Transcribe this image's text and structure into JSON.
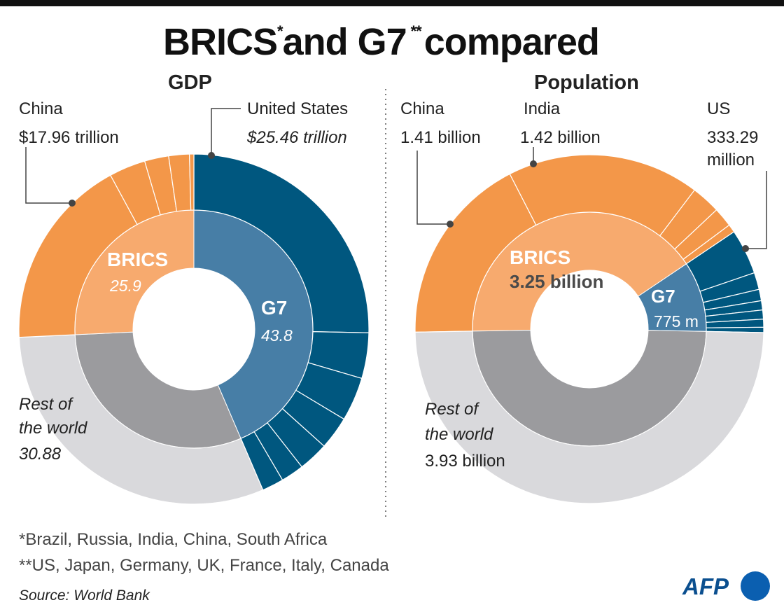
{
  "title": {
    "main_1": "BRICS",
    "sup_1": "*",
    "main_2": "and G7",
    "sup_2": "**",
    "main_3": "compared"
  },
  "colors": {
    "brics_outer": "#f39749",
    "brics_inner": "#f7aa6e",
    "g7_outer": "#00577f",
    "g7_inner": "#477ea6",
    "rest_outer": "#d9d9dc",
    "rest_inner": "#9b9b9e",
    "afp_blue": "#0b5fb0"
  },
  "chart_data": [
    {
      "type": "pie",
      "title": "GDP",
      "inner": [
        {
          "name": "G7",
          "value": 43.8,
          "value_label": "43.8",
          "color": "#477ea6"
        },
        {
          "name": "Rest of the world",
          "value": 30.88,
          "value_label": "30.88",
          "color": "#9b9b9e"
        },
        {
          "name": "BRICS",
          "value": 25.9,
          "value_label": "25.9",
          "color": "#f7aa6e"
        }
      ],
      "outer": [
        {
          "group": "G7",
          "segments": [
            {
              "name": "United States",
              "value": 25.46,
              "value_label": "$25.46 trillion"
            },
            {
              "value": 4.23
            },
            {
              "value": 4.07
            },
            {
              "value": 3.07
            },
            {
              "value": 2.78
            },
            {
              "value": 2.14
            },
            {
              "value": 2.01
            }
          ]
        },
        {
          "group": "Rest of the world",
          "segments": [
            {
              "value": 30.88
            }
          ]
        },
        {
          "group": "BRICS",
          "segments": [
            {
              "name": "China",
              "value": 17.96,
              "value_label": "$17.96 trillion"
            },
            {
              "value": 3.39
            },
            {
              "value": 2.24
            },
            {
              "value": 1.92
            },
            {
              "value": 0.41
            }
          ]
        }
      ],
      "labels": {
        "rest_1": "Rest of",
        "rest_2": "the world"
      }
    },
    {
      "type": "pie",
      "title": "Population",
      "inner": [
        {
          "name": "BRICS",
          "value": 3.25,
          "value_label": "3.25 billion",
          "color": "#f7aa6e"
        },
        {
          "name": "G7",
          "value": 0.775,
          "value_label": "775 m",
          "color": "#477ea6"
        },
        {
          "name": "Rest of the world",
          "value": 3.93,
          "value_label": "3.93 billion",
          "color": "#9b9b9e"
        }
      ],
      "outer": [
        {
          "group": "BRICS",
          "segments": [
            {
              "name": "China",
              "value": 1.41,
              "value_label": "1.41 billion"
            },
            {
              "name": "India",
              "value": 1.42,
              "value_label": "1.42 billion"
            },
            {
              "value": 0.215
            },
            {
              "value": 0.144
            },
            {
              "value": 0.06
            }
          ]
        },
        {
          "group": "G7",
          "segments": [
            {
              "name": "US",
              "value": 0.333,
              "value_label_1": "333.29",
              "value_label_2": "million"
            },
            {
              "value": 0.125
            },
            {
              "value": 0.084
            },
            {
              "value": 0.068
            },
            {
              "value": 0.067
            },
            {
              "value": 0.059
            },
            {
              "value": 0.039
            }
          ]
        },
        {
          "group": "Rest of the world",
          "segments": [
            {
              "value": 3.93
            }
          ]
        }
      ],
      "labels": {
        "rest_1": "Rest of",
        "rest_2": "the world"
      }
    }
  ],
  "footnotes": {
    "brics": "*Brazil, Russia, India, China, South Africa",
    "g7": "**US, Japan, Germany, UK, France, Italy, Canada",
    "source": "Source: World Bank"
  },
  "logo": {
    "text": "AFP"
  }
}
